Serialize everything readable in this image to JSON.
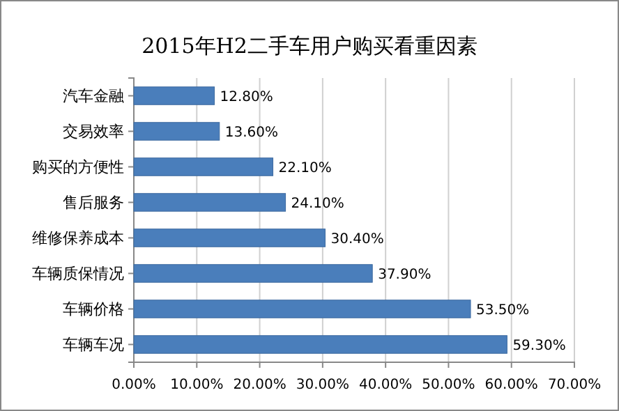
{
  "chart_data": {
    "type": "bar",
    "orientation": "horizontal",
    "title": "2015年H2二手车用户购买看重因素",
    "categories": [
      "汽车金融",
      "交易效率",
      "购买的方便性",
      "售后服务",
      "维修保养成本",
      "车辆质保情况",
      "车辆价格",
      "车辆车况"
    ],
    "values": [
      12.8,
      13.6,
      22.1,
      24.1,
      30.4,
      37.9,
      53.5,
      59.3
    ],
    "value_labels": [
      "12.80%",
      "13.60%",
      "22.10%",
      "24.10%",
      "30.40%",
      "37.90%",
      "53.50%",
      "59.30%"
    ],
    "color": "#4a7ebb",
    "xlim": [
      0,
      70
    ],
    "xticks": [
      {
        "value": 0,
        "label": "0.00%"
      },
      {
        "value": 10,
        "label": "10.00%"
      },
      {
        "value": 20,
        "label": "20.00%"
      },
      {
        "value": 30,
        "label": "30.00%"
      },
      {
        "value": 40,
        "label": "40.00%"
      },
      {
        "value": 50,
        "label": "50.00%"
      },
      {
        "value": 60,
        "label": "60.00%"
      },
      {
        "value": 70,
        "label": "70.00%"
      }
    ],
    "grid": "x"
  }
}
